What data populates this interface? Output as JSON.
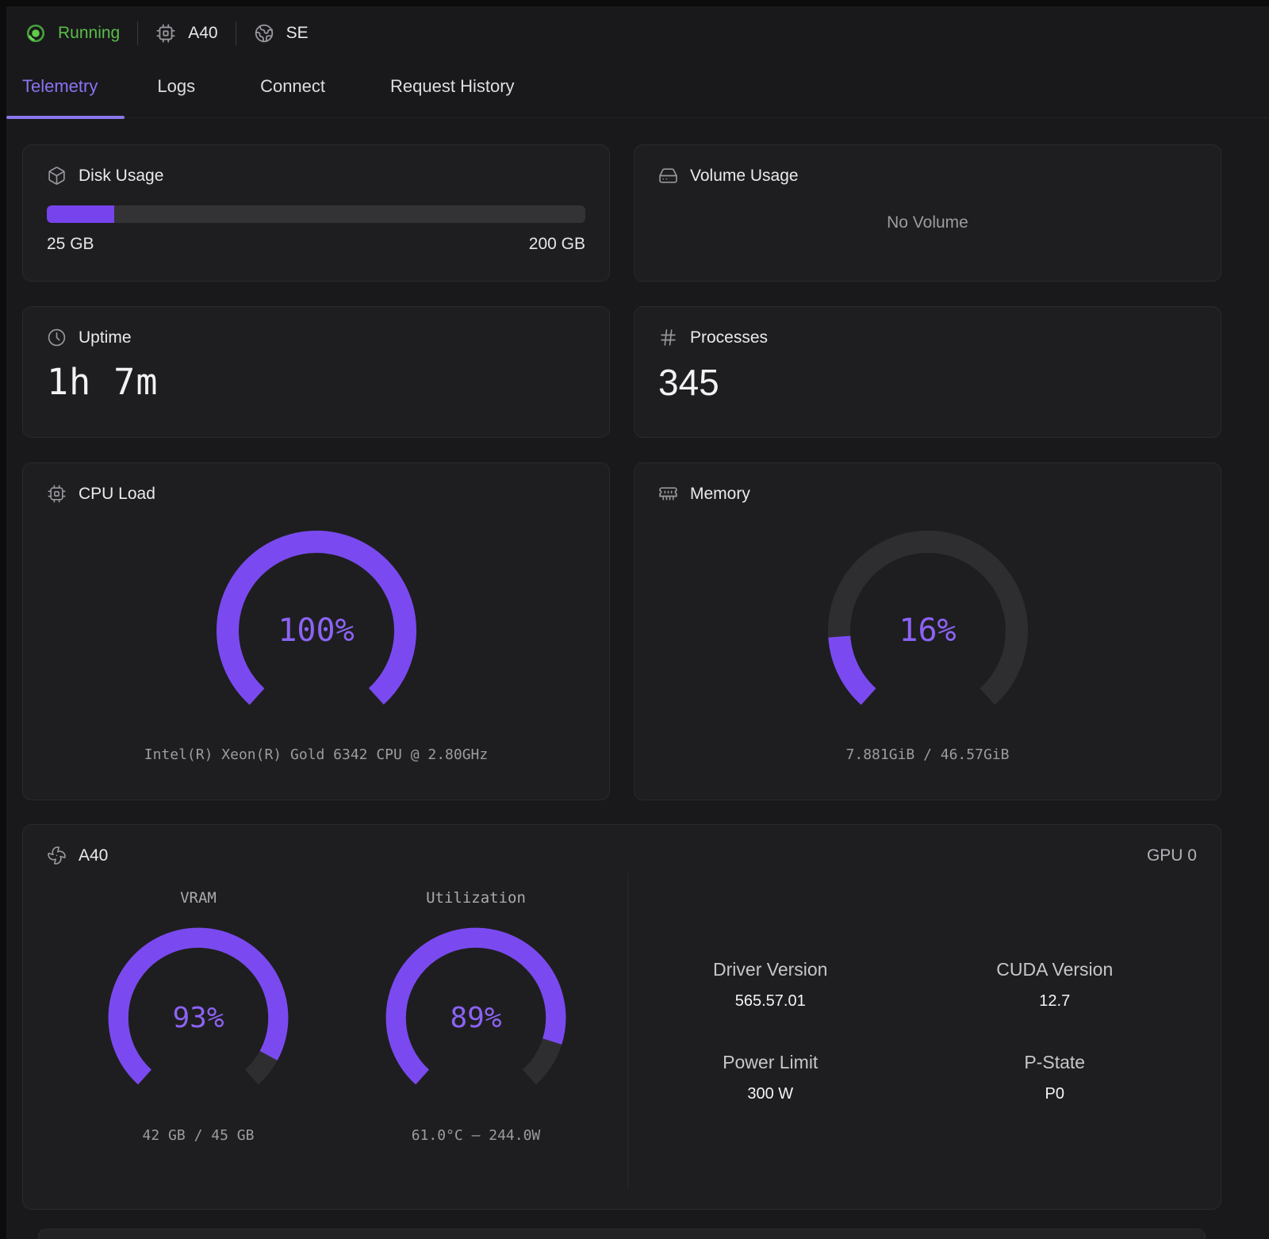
{
  "statusbar": {
    "status": "Running",
    "gpu_type": "A40",
    "region": "SE"
  },
  "tabs": [
    {
      "label": "Telemetry",
      "active": true
    },
    {
      "label": "Logs",
      "active": false
    },
    {
      "label": "Connect",
      "active": false
    },
    {
      "label": "Request History",
      "active": false
    }
  ],
  "cards": {
    "disk": {
      "title": "Disk Usage",
      "used": "25 GB",
      "total": "200 GB",
      "percent": 12.5
    },
    "volume": {
      "title": "Volume Usage",
      "empty_text": "No Volume"
    },
    "uptime": {
      "title": "Uptime",
      "value": "1h 7m"
    },
    "processes": {
      "title": "Processes",
      "value": "345"
    },
    "cpu": {
      "title": "CPU Load",
      "percent": 100,
      "label": "100%",
      "sub": "Intel(R) Xeon(R) Gold 6342 CPU @ 2.80GHz"
    },
    "memory": {
      "title": "Memory",
      "percent": 16,
      "label": "16%",
      "sub": "7.881GiB / 46.57GiB"
    },
    "gpu": {
      "title": "A40",
      "badge": "GPU 0",
      "vram": {
        "label": "VRAM",
        "percent": 93,
        "value": "93%",
        "sub": "42 GB / 45 GB"
      },
      "util": {
        "label": "Utilization",
        "percent": 89,
        "value": "89%",
        "sub": "61.0°C – 244.0W"
      },
      "info": [
        {
          "label": "Driver Version",
          "value": "565.57.01"
        },
        {
          "label": "CUDA Version",
          "value": "12.7"
        },
        {
          "label": "Power Limit",
          "value": "300 W"
        },
        {
          "label": "P-State",
          "value": "P0"
        }
      ]
    }
  },
  "colors": {
    "accent": "#7a4af0",
    "accent_text": "#8c63f5",
    "gauge_track": "#2e2e31",
    "green": "#5abc4a",
    "progress": "#7743ec"
  }
}
